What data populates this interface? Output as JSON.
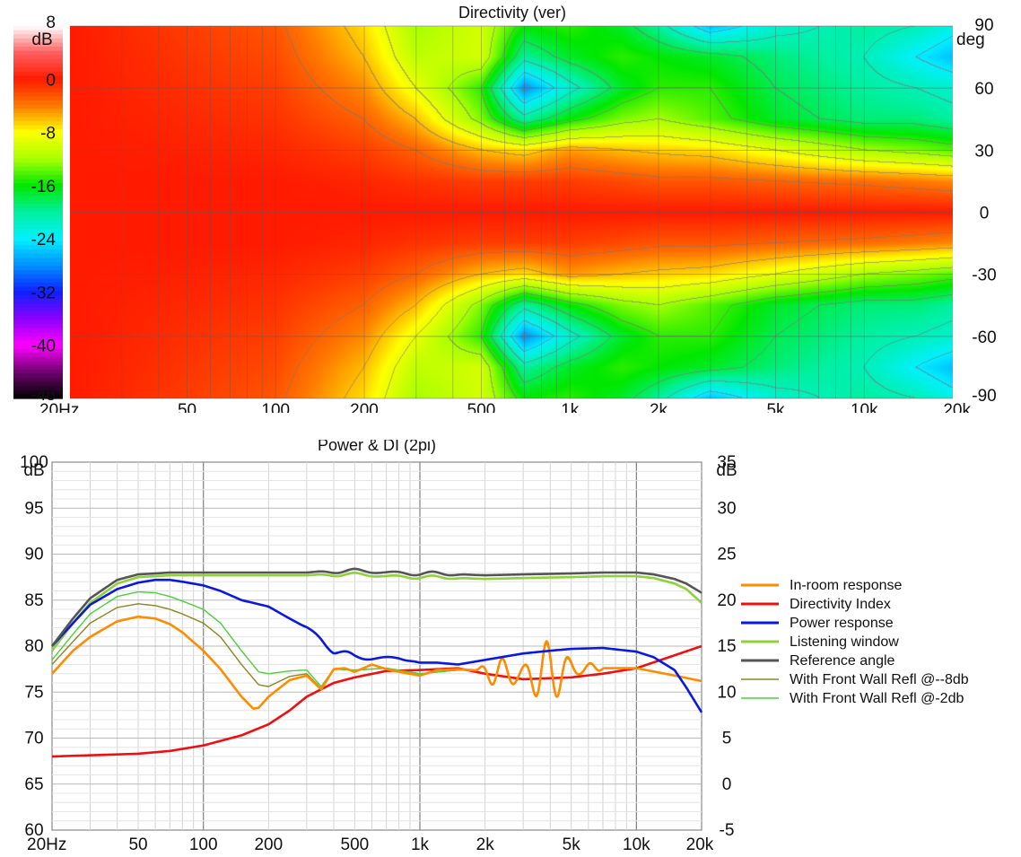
{
  "chart_data": [
    {
      "type": "heatmap",
      "title": "Directivity (ver)",
      "x_scale": "log",
      "xlim": [
        20,
        20000
      ],
      "x_ticks": [
        20,
        50,
        100,
        200,
        500,
        1000,
        2000,
        5000,
        10000,
        20000
      ],
      "x_tick_labels": [
        "20Hz",
        "50",
        "100",
        "200",
        "500",
        "1k",
        "2k",
        "5k",
        "10k",
        "20k"
      ],
      "ylim": [
        -90,
        90
      ],
      "y_ticks": [
        90,
        60,
        30,
        0,
        -30,
        -60,
        -90
      ],
      "y_tick_labels": [
        "90",
        "60",
        "30",
        "0",
        "-30",
        "-60",
        "-90"
      ],
      "ylabel": "deg",
      "colorbar": {
        "range": [
          -48,
          8
        ],
        "unit": "dB",
        "ticks": [
          8,
          0,
          -8,
          -16,
          -24,
          -32,
          -40,
          -48
        ],
        "tick_labels": [
          "8",
          "0",
          "-8",
          "-16",
          "-24",
          "-32",
          "-40",
          "-48"
        ],
        "stops": [
          {
            "db": 8,
            "color": "#ffffff"
          },
          {
            "db": 4,
            "color": "#ff6060"
          },
          {
            "db": 0,
            "color": "#ff1a00"
          },
          {
            "db": -4,
            "color": "#ff7a00"
          },
          {
            "db": -8,
            "color": "#ffff00"
          },
          {
            "db": -12,
            "color": "#a8ff00"
          },
          {
            "db": -16,
            "color": "#00e800"
          },
          {
            "db": -20,
            "color": "#00f0a0"
          },
          {
            "db": -24,
            "color": "#00f0ff"
          },
          {
            "db": -28,
            "color": "#0090ff"
          },
          {
            "db": -32,
            "color": "#1020ff"
          },
          {
            "db": -36,
            "color": "#8a00ff"
          },
          {
            "db": -40,
            "color": "#ff00ff"
          },
          {
            "db": -44,
            "color": "#700070"
          },
          {
            "db": -48,
            "color": "#000000"
          }
        ]
      },
      "attenuation_db": {
        "freqs": [
          20,
          100,
          200,
          300,
          500,
          700,
          1000,
          1500,
          2000,
          3000,
          5000,
          10000,
          15000,
          20000
        ],
        "angles": [
          0,
          15,
          30,
          45,
          60,
          75,
          90
        ],
        "values": [
          [
            0,
            0,
            0,
            0,
            0,
            0,
            0,
            0,
            0,
            0,
            0,
            0,
            0,
            0
          ],
          [
            0,
            0,
            -0.5,
            -1,
            -1.5,
            -1.5,
            -1.5,
            -2,
            -2.5,
            -2.5,
            -3,
            -3.5,
            -4,
            -4.5
          ],
          [
            0,
            -0.5,
            -1.5,
            -3,
            -6,
            -7,
            -5,
            -6,
            -6.5,
            -7,
            -9,
            -12,
            -13,
            -14
          ],
          [
            0,
            -1,
            -3,
            -6,
            -13,
            -20,
            -16,
            -13,
            -12,
            -14,
            -17,
            -19,
            -19,
            -20
          ],
          [
            0,
            -1.5,
            -4.5,
            -9,
            -15,
            -28,
            -22,
            -17,
            -15,
            -15,
            -18,
            -20,
            -21,
            -22
          ],
          [
            0,
            -2,
            -6,
            -11,
            -10,
            -20,
            -17,
            -15,
            -16,
            -17,
            -19,
            -21,
            -24,
            -26
          ],
          [
            0,
            -2.5,
            -7,
            -12,
            -10,
            -16,
            -15,
            -17,
            -20,
            -26,
            -22,
            -20,
            -21,
            -23
          ]
        ]
      }
    },
    {
      "type": "line",
      "title": "Power & DI (2pi)",
      "x_scale": "log",
      "xlim": [
        20,
        20000
      ],
      "x_ticks": [
        20,
        50,
        100,
        200,
        500,
        1000,
        2000,
        5000,
        10000,
        20000
      ],
      "x_tick_labels": [
        "20Hz",
        "50",
        "100",
        "200",
        "500",
        "1k",
        "2k",
        "5k",
        "10k",
        "20k"
      ],
      "ylim": [
        60,
        100
      ],
      "y_ticks": [
        100,
        95,
        90,
        85,
        80,
        75,
        70,
        65,
        60
      ],
      "y_tick_labels": [
        "100",
        "95",
        "90",
        "85",
        "80",
        "75",
        "70",
        "65",
        "60"
      ],
      "ylabel": "dB",
      "y2lim": [
        -5,
        35
      ],
      "y2_ticks": [
        35,
        30,
        25,
        20,
        15,
        10,
        5,
        0,
        -5
      ],
      "y2_tick_labels": [
        "35",
        "30",
        "25",
        "20",
        "15",
        "10",
        "5",
        "0",
        "-5"
      ],
      "y2label": "dB",
      "grid": true,
      "legend_position": "right",
      "series": [
        {
          "name": "In-room response",
          "color": "#ff8c00",
          "axis": "left",
          "x": [
            20,
            25,
            30,
            40,
            50,
            60,
            70,
            80,
            100,
            120,
            150,
            170,
            180,
            200,
            250,
            300,
            350,
            400,
            450,
            500,
            600,
            700,
            800,
            1000,
            1200,
            1500,
            2000,
            3000,
            4000,
            5000,
            7000,
            10000,
            15000,
            20000
          ],
          "y": [
            77,
            79.5,
            81,
            82.7,
            83.2,
            83,
            82.4,
            81.5,
            79.5,
            77.5,
            74.5,
            73.2,
            73.3,
            74.5,
            76.3,
            76.8,
            75.3,
            77.5,
            77.6,
            77.2,
            78,
            77.5,
            77.2,
            76.8,
            77.4,
            77.5,
            77.3,
            76.8,
            77.2,
            77.5,
            77.6,
            77.6,
            76.8,
            76.2
          ],
          "ripple": {
            "start_hz": 1800,
            "end_hz": 16000,
            "amplitude_db": 3.5
          }
        },
        {
          "name": "Directivity Index",
          "color": "#ee1010",
          "axis": "right",
          "x": [
            20,
            50,
            70,
            100,
            150,
            200,
            250,
            300,
            400,
            500,
            700,
            1000,
            1500,
            2000,
            3000,
            5000,
            7000,
            10000,
            15000,
            20000
          ],
          "y": [
            3,
            3.3,
            3.6,
            4.2,
            5.3,
            6.5,
            8,
            9.5,
            11,
            11.6,
            12.3,
            12.4,
            12.6,
            12.0,
            11.4,
            11.6,
            12.0,
            12.6,
            14.0,
            15.0
          ]
        },
        {
          "name": "Power response",
          "color": "#0a18e0",
          "axis": "left",
          "x": [
            20,
            25,
            30,
            40,
            50,
            60,
            70,
            80,
            100,
            120,
            150,
            200,
            250,
            300,
            350,
            400,
            500,
            600,
            700,
            800,
            1000,
            1200,
            1500,
            2000,
            3000,
            4000,
            5000,
            7000,
            10000,
            12000,
            15000,
            17000,
            20000
          ],
          "y": [
            80,
            82.5,
            84.5,
            86.2,
            86.9,
            87.2,
            87.2,
            87,
            86.6,
            86,
            85,
            84.3,
            83,
            82,
            80.8,
            79.5,
            78.8,
            78.7,
            78.7,
            78.7,
            78.2,
            78.2,
            78,
            78.5,
            79.2,
            79.5,
            79.7,
            79.8,
            79.4,
            78.8,
            77.4,
            75.5,
            72.8
          ],
          "ripple": {
            "start_hz": 280,
            "end_hz": 2000,
            "amplitude_db": 0.5
          }
        },
        {
          "name": "Listening window",
          "color": "#8fd13b",
          "axis": "left",
          "x": [
            20,
            25,
            30,
            40,
            50,
            60,
            70,
            80,
            100,
            150,
            200,
            300,
            500,
            700,
            1000,
            1500,
            2000,
            3000,
            5000,
            7000,
            10000,
            12000,
            15000,
            17000,
            20000
          ],
          "y": [
            79.5,
            82.5,
            84.7,
            86.8,
            87.5,
            87.6,
            87.7,
            87.7,
            87.7,
            87.7,
            87.7,
            87.7,
            87.8,
            87.6,
            87.5,
            87.4,
            87.3,
            87.4,
            87.5,
            87.6,
            87.6,
            87.4,
            86.8,
            86.2,
            84.7
          ],
          "ripple": {
            "start_hz": 300,
            "end_hz": 5000,
            "amplitude_db": 0.3
          }
        },
        {
          "name": "Reference angle",
          "color": "#555555",
          "axis": "left",
          "x": [
            20,
            25,
            30,
            40,
            50,
            60,
            70,
            80,
            100,
            150,
            200,
            300,
            500,
            700,
            1000,
            1500,
            2000,
            3000,
            5000,
            7000,
            10000,
            12000,
            15000,
            17000,
            20000
          ],
          "y": [
            80,
            83,
            85.2,
            87.2,
            87.8,
            87.9,
            88,
            88,
            88,
            88,
            88,
            88,
            88.2,
            88,
            87.9,
            87.8,
            87.7,
            87.8,
            87.9,
            88,
            88,
            87.8,
            87.3,
            86.8,
            85.8
          ],
          "ripple": {
            "start_hz": 300,
            "end_hz": 5000,
            "amplitude_db": 0.35
          }
        },
        {
          "name": "With Front Wall Refl @--8db",
          "color": "#8b8520",
          "axis": "left",
          "x": [
            20,
            25,
            30,
            40,
            50,
            60,
            70,
            80,
            100,
            120,
            150,
            180,
            200,
            250,
            300,
            350,
            400,
            500,
            700,
            1000,
            1500,
            2000,
            3000,
            5000,
            7000,
            10000,
            15000,
            20000
          ],
          "y": [
            78,
            80.5,
            82.5,
            84.2,
            84.6,
            84.4,
            84,
            83.5,
            82.5,
            81,
            78,
            75.8,
            75.6,
            76.7,
            77,
            75.4,
            77.5,
            77.4,
            77.6,
            77,
            77.4,
            77.3,
            76.8,
            77.4,
            77.6,
            77.6,
            76.8,
            76.2
          ],
          "ripple": {
            "start_hz": 1800,
            "end_hz": 16000,
            "amplitude_db": 3.3
          }
        },
        {
          "name": "With Front Wall Refl @-2db",
          "color": "#4ccf3a",
          "axis": "left",
          "x": [
            20,
            25,
            30,
            40,
            50,
            60,
            70,
            80,
            100,
            120,
            150,
            180,
            200,
            250,
            300,
            350,
            400,
            500,
            700,
            1000,
            1500,
            2000,
            3000,
            5000,
            7000,
            10000,
            15000,
            20000
          ],
          "y": [
            78.5,
            81.3,
            83.5,
            85.4,
            85.9,
            85.8,
            85.4,
            84.9,
            84,
            82.5,
            79.5,
            77.2,
            77,
            77.3,
            77.4,
            75.6,
            77.5,
            77.4,
            77.6,
            77,
            77.4,
            77.3,
            76.8,
            77.4,
            77.6,
            77.6,
            76.8,
            76.2
          ],
          "ripple": {
            "start_hz": 1800,
            "end_hz": 16000,
            "amplitude_db": 3.3
          }
        }
      ]
    }
  ]
}
